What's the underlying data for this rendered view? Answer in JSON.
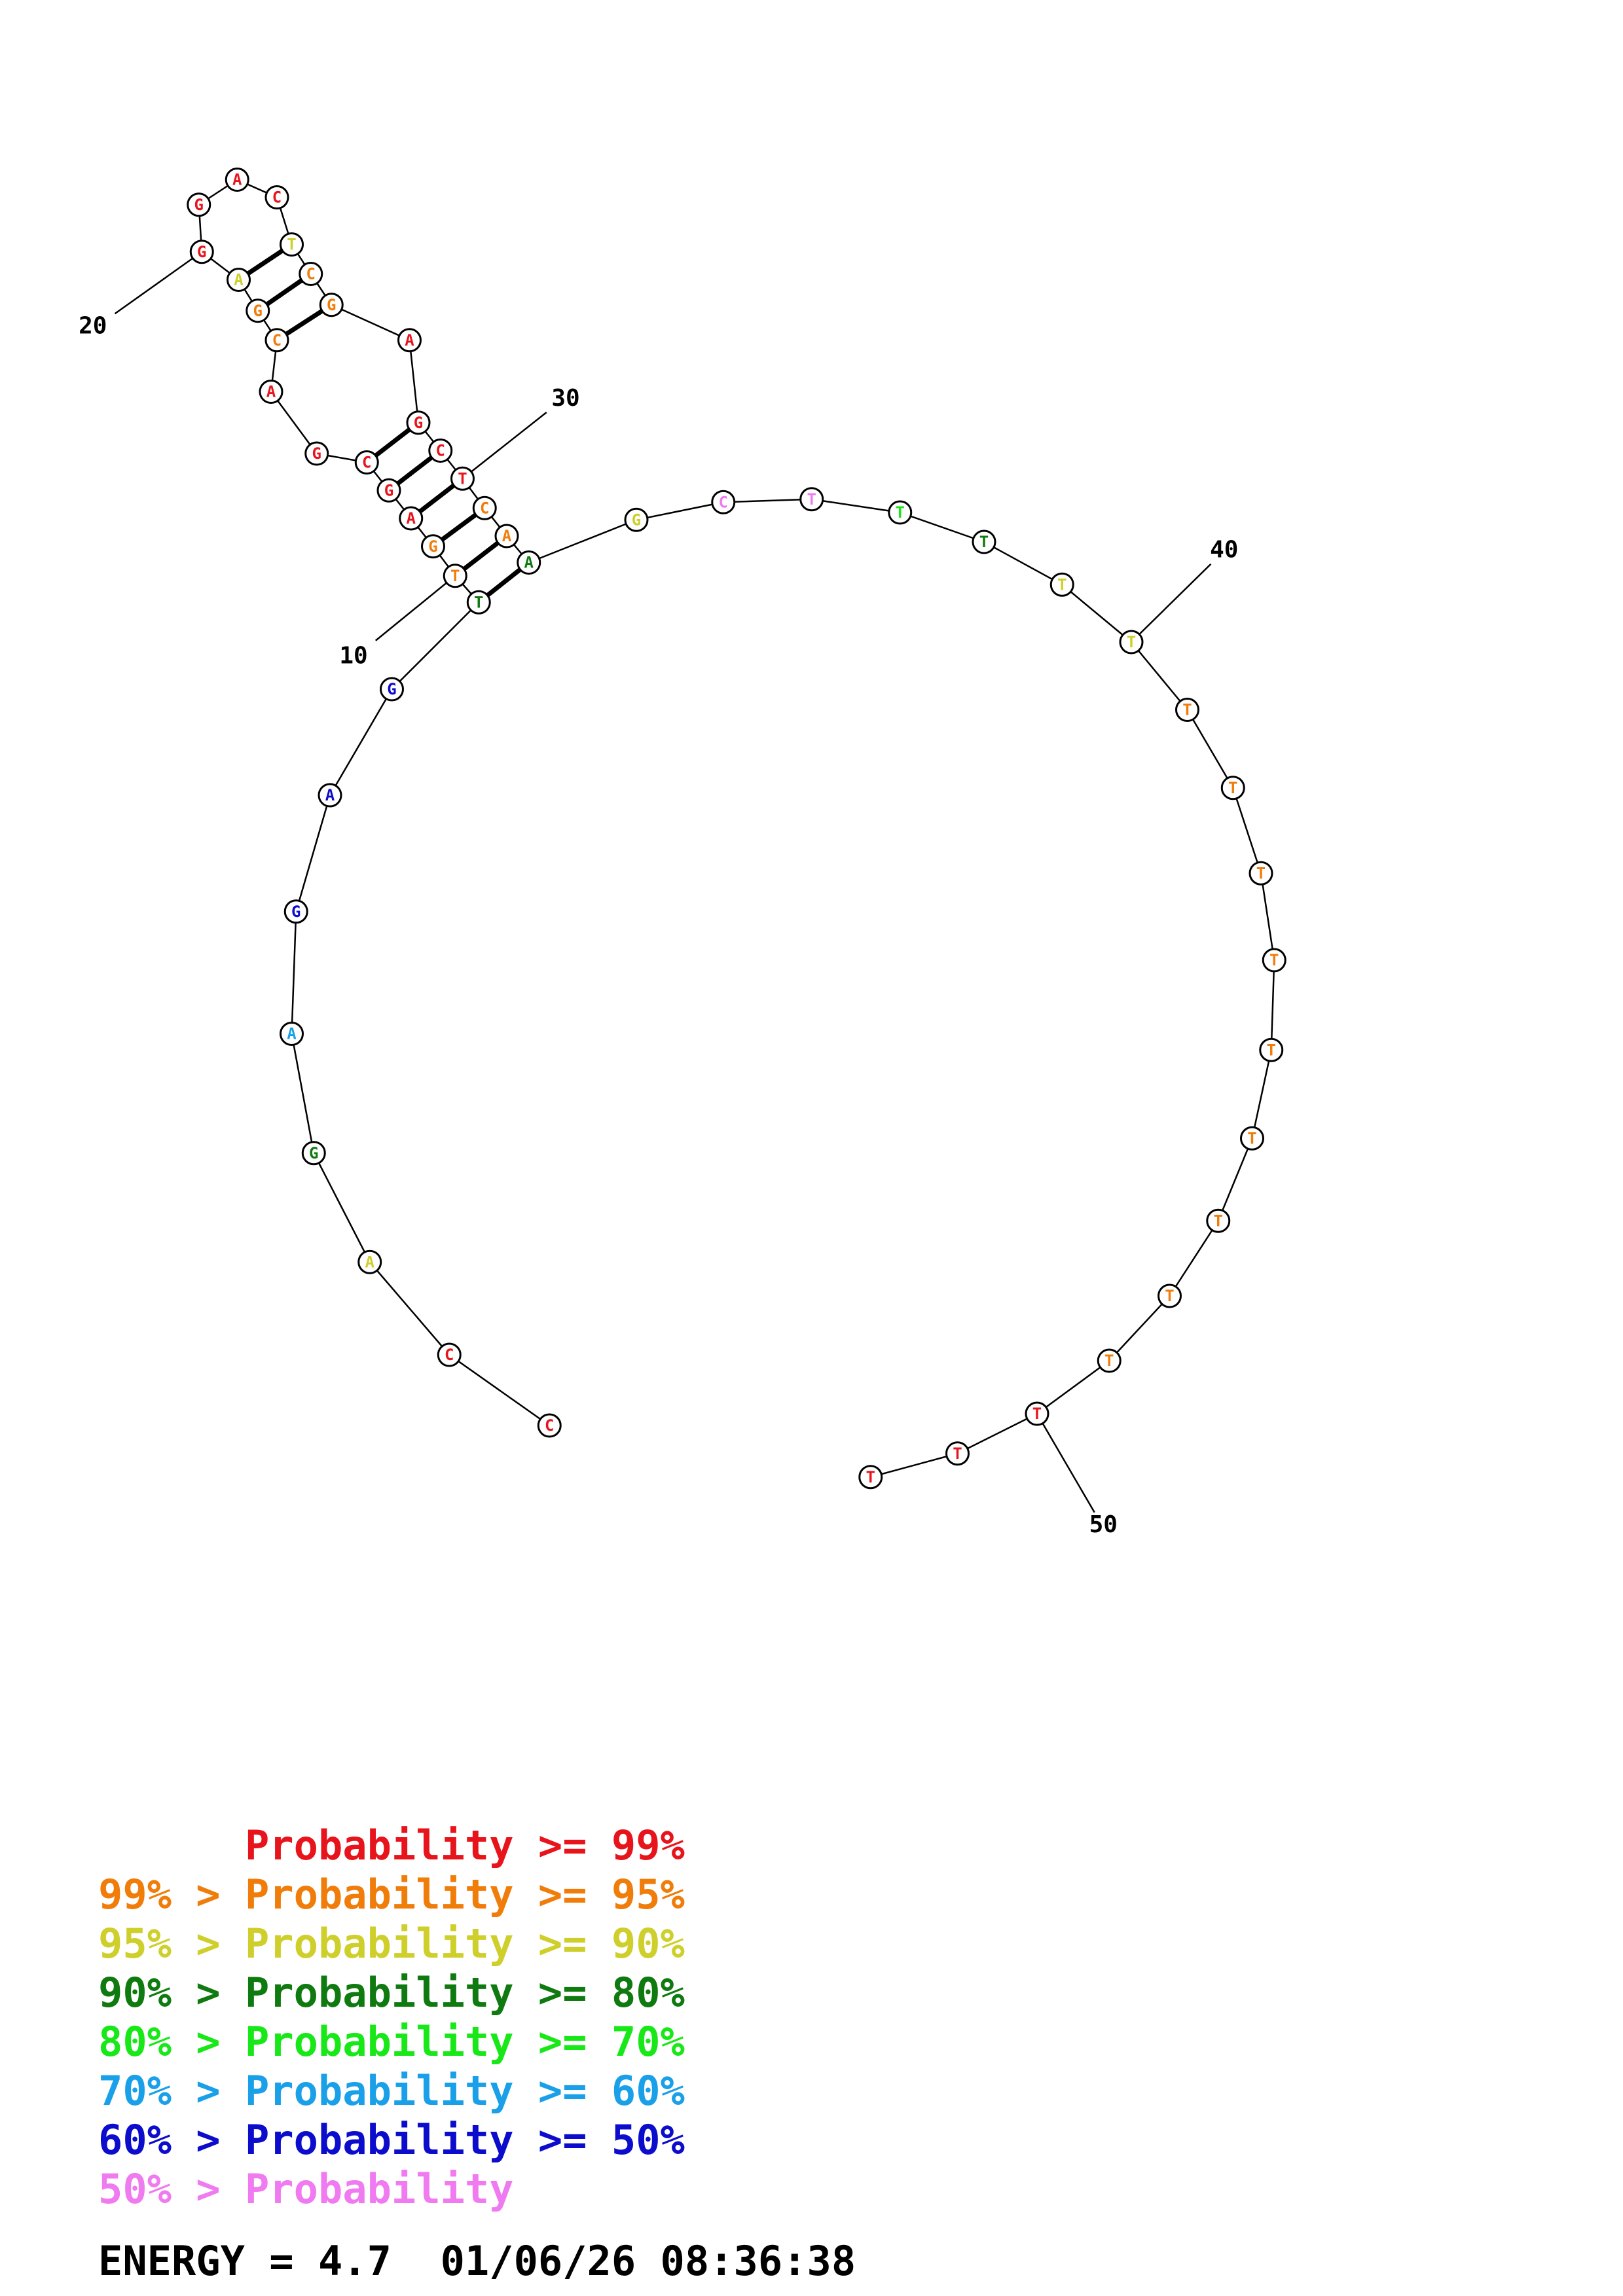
{
  "colors": {
    "p99": "#e8141c",
    "p95": "#f07d0a",
    "p90": "#cfcf2c",
    "p80": "#0f7a0f",
    "p70": "#18e818",
    "p60": "#1aa0e8",
    "p50": "#0c0ccc",
    "plow": "#f07af0"
  },
  "nucleotides": [
    {
      "n": 1,
      "base": "C",
      "prob": "p99"
    },
    {
      "n": 2,
      "base": "C",
      "prob": "p99"
    },
    {
      "n": 3,
      "base": "A",
      "prob": "p90"
    },
    {
      "n": 4,
      "base": "G",
      "prob": "p80"
    },
    {
      "n": 5,
      "base": "A",
      "prob": "p60"
    },
    {
      "n": 6,
      "base": "G",
      "prob": "p50"
    },
    {
      "n": 7,
      "base": "A",
      "prob": "p50"
    },
    {
      "n": 8,
      "base": "G",
      "prob": "p50"
    },
    {
      "n": 9,
      "base": "T",
      "prob": "p80"
    },
    {
      "n": 10,
      "base": "T",
      "prob": "p95"
    },
    {
      "n": 11,
      "base": "G",
      "prob": "p95"
    },
    {
      "n": 12,
      "base": "A",
      "prob": "p99"
    },
    {
      "n": 13,
      "base": "G",
      "prob": "p99"
    },
    {
      "n": 14,
      "base": "C",
      "prob": "p99"
    },
    {
      "n": 15,
      "base": "G",
      "prob": "p99"
    },
    {
      "n": 16,
      "base": "A",
      "prob": "p99"
    },
    {
      "n": 17,
      "base": "C",
      "prob": "p95"
    },
    {
      "n": 18,
      "base": "G",
      "prob": "p95"
    },
    {
      "n": 19,
      "base": "A",
      "prob": "p90"
    },
    {
      "n": 20,
      "base": "G",
      "prob": "p99"
    },
    {
      "n": 21,
      "base": "G",
      "prob": "p99"
    },
    {
      "n": 22,
      "base": "A",
      "prob": "p99"
    },
    {
      "n": 23,
      "base": "C",
      "prob": "p99"
    },
    {
      "n": 24,
      "base": "T",
      "prob": "p90"
    },
    {
      "n": 25,
      "base": "C",
      "prob": "p95"
    },
    {
      "n": 26,
      "base": "G",
      "prob": "p95"
    },
    {
      "n": 27,
      "base": "A",
      "prob": "p99"
    },
    {
      "n": 28,
      "base": "G",
      "prob": "p99"
    },
    {
      "n": 29,
      "base": "C",
      "prob": "p99"
    },
    {
      "n": 30,
      "base": "T",
      "prob": "p99"
    },
    {
      "n": 31,
      "base": "C",
      "prob": "p95"
    },
    {
      "n": 32,
      "base": "A",
      "prob": "p95"
    },
    {
      "n": 33,
      "base": "A",
      "prob": "p80"
    },
    {
      "n": 34,
      "base": "G",
      "prob": "p90"
    },
    {
      "n": 35,
      "base": "C",
      "prob": "plow"
    },
    {
      "n": 36,
      "base": "T",
      "prob": "plow"
    },
    {
      "n": 37,
      "base": "T",
      "prob": "p70"
    },
    {
      "n": 38,
      "base": "T",
      "prob": "p80"
    },
    {
      "n": 39,
      "base": "T",
      "prob": "p90"
    },
    {
      "n": 40,
      "base": "T",
      "prob": "p90"
    },
    {
      "n": 41,
      "base": "T",
      "prob": "p95"
    },
    {
      "n": 42,
      "base": "T",
      "prob": "p95"
    },
    {
      "n": 43,
      "base": "T",
      "prob": "p95"
    },
    {
      "n": 44,
      "base": "T",
      "prob": "p95"
    },
    {
      "n": 45,
      "base": "T",
      "prob": "p95"
    },
    {
      "n": 46,
      "base": "T",
      "prob": "p95"
    },
    {
      "n": 47,
      "base": "T",
      "prob": "p95"
    },
    {
      "n": 48,
      "base": "T",
      "prob": "p95"
    },
    {
      "n": 49,
      "base": "T",
      "prob": "p95"
    },
    {
      "n": 50,
      "base": "T",
      "prob": "p99"
    },
    {
      "n": 51,
      "base": "T",
      "prob": "p99"
    },
    {
      "n": 52,
      "base": "T",
      "prob": "p99"
    }
  ],
  "base_pairs": [
    [
      9,
      33
    ],
    [
      10,
      32
    ],
    [
      11,
      31
    ],
    [
      12,
      30
    ],
    [
      13,
      29
    ],
    [
      14,
      28
    ],
    [
      17,
      26
    ],
    [
      18,
      25
    ],
    [
      19,
      24
    ]
  ],
  "position_markers": [
    "10",
    "20",
    "30",
    "40",
    "50"
  ],
  "legend": [
    {
      "prefix": "",
      "label": "Probability",
      "suffix": ">= 99%",
      "color": "p99"
    },
    {
      "prefix": "99% >",
      "label": "Probability",
      "suffix": ">= 95%",
      "color": "p95"
    },
    {
      "prefix": "95% >",
      "label": "Probability",
      "suffix": ">= 90%",
      "color": "p90"
    },
    {
      "prefix": "90% >",
      "label": "Probability",
      "suffix": ">= 80%",
      "color": "p80"
    },
    {
      "prefix": "80% >",
      "label": "Probability",
      "suffix": ">= 70%",
      "color": "p70"
    },
    {
      "prefix": "70% >",
      "label": "Probability",
      "suffix": ">= 60%",
      "color": "p60"
    },
    {
      "prefix": "60% >",
      "label": "Probability",
      "suffix": ">= 50%",
      "color": "p50"
    },
    {
      "prefix": "50% >",
      "label": "Probability",
      "suffix": "",
      "color": "plow"
    }
  ],
  "footer": {
    "energy": "ENERGY = 4.7",
    "timestamp": "01/06/26 08:36:38"
  }
}
